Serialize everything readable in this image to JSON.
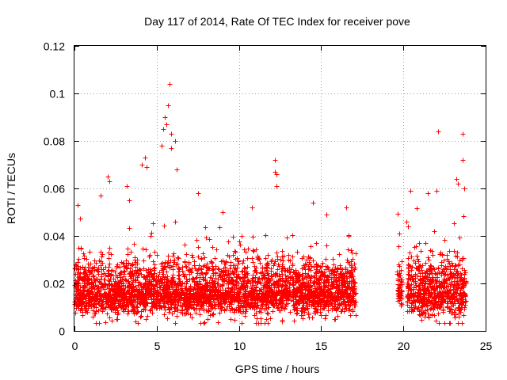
{
  "chart_data": {
    "type": "scatter",
    "title": "Day 117 of 2014, Rate Of TEC Index for receiver pove",
    "xlabel": "GPS time / hours",
    "ylabel": "ROTI / TECUs",
    "xlim": [
      0,
      25
    ],
    "ylim": [
      0,
      0.12
    ],
    "x_ticks": [
      0,
      5,
      10,
      15,
      20,
      25
    ],
    "x_tick_labels": [
      "0",
      "5",
      "10",
      "15",
      "20",
      "25"
    ],
    "y_ticks": [
      0,
      0.02,
      0.04,
      0.06,
      0.08,
      0.1,
      0.12
    ],
    "y_tick_labels": [
      "0",
      "0.02",
      "0.04",
      "0.06",
      "0.08",
      "0.1",
      "0.12"
    ],
    "grid": true,
    "marker": "+",
    "color": "#ff0000",
    "point_count_estimate": 4200,
    "data_segments": [
      {
        "start": 0.0,
        "end": 17.1,
        "typical_range": [
          0.005,
          0.035
        ],
        "typical_mean": 0.016,
        "spread": 0.007
      },
      {
        "start": 19.6,
        "end": 19.9,
        "typical_range": [
          0.008,
          0.04
        ],
        "typical_mean": 0.018,
        "spread": 0.008
      },
      {
        "start": 20.2,
        "end": 23.8,
        "typical_range": [
          0.005,
          0.045
        ],
        "typical_mean": 0.016,
        "spread": 0.008
      }
    ],
    "notable_points": [
      {
        "x": 5.8,
        "y": 0.104
      },
      {
        "x": 5.7,
        "y": 0.095
      },
      {
        "x": 5.5,
        "y": 0.09
      },
      {
        "x": 5.6,
        "y": 0.087
      },
      {
        "x": 5.4,
        "y": 0.085
      },
      {
        "x": 5.9,
        "y": 0.083
      },
      {
        "x": 6.1,
        "y": 0.08
      },
      {
        "x": 5.3,
        "y": 0.078
      },
      {
        "x": 5.9,
        "y": 0.077
      },
      {
        "x": 4.1,
        "y": 0.07
      },
      {
        "x": 4.3,
        "y": 0.073
      },
      {
        "x": 4.4,
        "y": 0.069
      },
      {
        "x": 6.2,
        "y": 0.068
      },
      {
        "x": 12.2,
        "y": 0.072
      },
      {
        "x": 12.2,
        "y": 0.067
      },
      {
        "x": 12.3,
        "y": 0.066
      },
      {
        "x": 12.3,
        "y": 0.061
      },
      {
        "x": 2.0,
        "y": 0.065
      },
      {
        "x": 2.1,
        "y": 0.063
      },
      {
        "x": 3.2,
        "y": 0.061
      },
      {
        "x": 22.1,
        "y": 0.084
      },
      {
        "x": 23.6,
        "y": 0.083
      },
      {
        "x": 23.6,
        "y": 0.072
      },
      {
        "x": 23.2,
        "y": 0.064
      },
      {
        "x": 23.3,
        "y": 0.062
      },
      {
        "x": 22.0,
        "y": 0.059
      },
      {
        "x": 23.7,
        "y": 0.06
      },
      {
        "x": 20.4,
        "y": 0.059
      },
      {
        "x": 21.5,
        "y": 0.058
      },
      {
        "x": 16.5,
        "y": 0.052
      },
      {
        "x": 15.3,
        "y": 0.049
      },
      {
        "x": 14.5,
        "y": 0.054
      },
      {
        "x": 0.2,
        "y": 0.053
      },
      {
        "x": 1.6,
        "y": 0.057
      },
      {
        "x": 7.5,
        "y": 0.058
      },
      {
        "x": 10.8,
        "y": 0.052
      },
      {
        "x": 9.0,
        "y": 0.05
      }
    ]
  }
}
